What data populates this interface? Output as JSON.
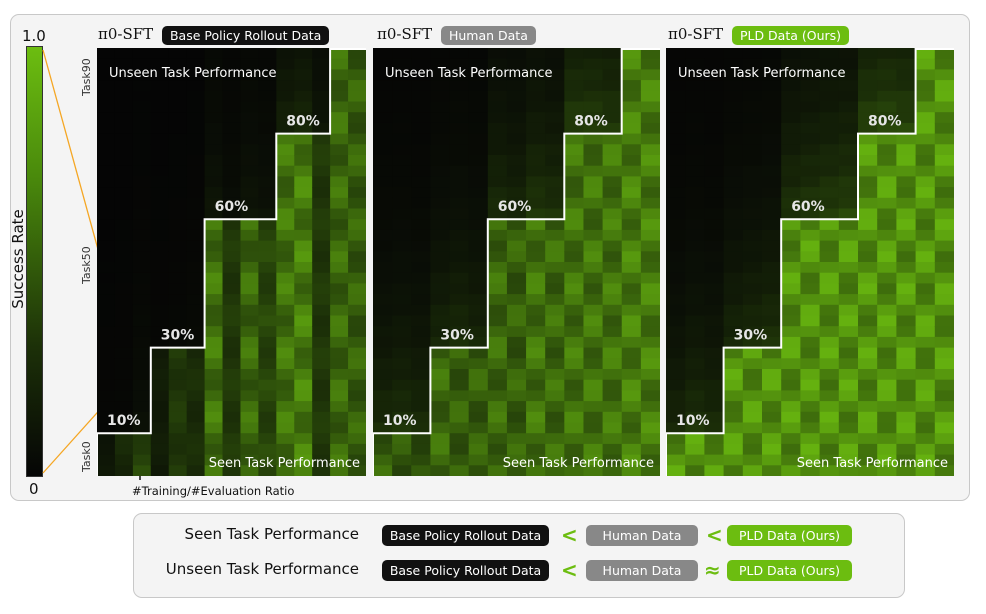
{
  "colorbar": {
    "top_label": "1.0",
    "bottom_label": "0",
    "title": "Success Rate"
  },
  "y_ticks": [
    "Task90",
    "Task50",
    "Task0"
  ],
  "x_annotation": "#Training/#Evaluation Ratio",
  "colors": {
    "low": "#050505",
    "high": "#6cbd10",
    "boundary": "#ffffff",
    "highlight": "#f5a623"
  },
  "chart_data": [
    {
      "type": "heatmap",
      "title_model": "π0-SFT",
      "title_tag": "Base Policy Rollout Data",
      "region_top_label": "Unseen Task Performance",
      "region_bottom_label": "Seen Task Performance",
      "stair_steps": [
        {
          "label": "10%",
          "col_start": 0,
          "col_end": 3,
          "seen_tasks": 10
        },
        {
          "label": "30%",
          "col_start": 3,
          "col_end": 6,
          "seen_tasks": 30
        },
        {
          "label": "60%",
          "col_start": 6,
          "col_end": 10,
          "seen_tasks": 60
        },
        {
          "label": "80%",
          "col_start": 10,
          "col_end": 13,
          "seen_tasks": 80
        },
        {
          "label": "",
          "col_start": 13,
          "col_end": 15,
          "seen_tasks": 100
        }
      ],
      "rows": 100,
      "cols": 15,
      "seen_success": [
        0.15,
        0.3,
        0.55,
        0.2,
        0.45,
        0.35,
        0.8,
        0.45,
        0.75,
        0.55,
        0.8,
        0.85,
        0.45,
        0.75,
        0.7
      ],
      "unseen_success": [
        0.02,
        0.03,
        0.1,
        0.02,
        0.03,
        0.05,
        0.15,
        0.08,
        0.15,
        0.12,
        0.25,
        0.3,
        0.15,
        0.45,
        0.55
      ]
    },
    {
      "type": "heatmap",
      "title_model": "π0-SFT",
      "title_tag": "Human Data",
      "region_top_label": "Unseen Task Performance",
      "region_bottom_label": "Seen Task Performance",
      "stair_steps": [
        {
          "label": "10%",
          "col_start": 0,
          "col_end": 3,
          "seen_tasks": 10
        },
        {
          "label": "30%",
          "col_start": 3,
          "col_end": 6,
          "seen_tasks": 30
        },
        {
          "label": "60%",
          "col_start": 6,
          "col_end": 10,
          "seen_tasks": 60
        },
        {
          "label": "80%",
          "col_start": 10,
          "col_end": 13,
          "seen_tasks": 80
        },
        {
          "label": "",
          "col_start": 13,
          "col_end": 15,
          "seen_tasks": 100
        }
      ],
      "rows": 100,
      "cols": 15,
      "seen_success": [
        0.7,
        0.65,
        0.6,
        0.75,
        0.7,
        0.7,
        0.75,
        0.7,
        0.8,
        0.75,
        0.8,
        0.8,
        0.8,
        0.85,
        0.85
      ],
      "unseen_success": [
        0.35,
        0.4,
        0.35,
        0.3,
        0.35,
        0.3,
        0.35,
        0.3,
        0.45,
        0.4,
        0.5,
        0.5,
        0.45,
        0.6,
        0.65
      ]
    },
    {
      "type": "heatmap",
      "title_model": "π0-SFT",
      "title_tag": "PLD Data (Ours)",
      "region_top_label": "Unseen Task Performance",
      "region_bottom_label": "Seen Task Performance",
      "stair_steps": [
        {
          "label": "10%",
          "col_start": 0,
          "col_end": 3,
          "seen_tasks": 10
        },
        {
          "label": "30%",
          "col_start": 3,
          "col_end": 6,
          "seen_tasks": 30
        },
        {
          "label": "60%",
          "col_start": 6,
          "col_end": 10,
          "seen_tasks": 60
        },
        {
          "label": "80%",
          "col_start": 10,
          "col_end": 13,
          "seen_tasks": 80
        },
        {
          "label": "",
          "col_start": 13,
          "col_end": 15,
          "seen_tasks": 100
        }
      ],
      "rows": 100,
      "cols": 15,
      "seen_success": [
        0.95,
        0.95,
        0.95,
        0.95,
        0.95,
        0.95,
        0.95,
        0.95,
        0.95,
        0.95,
        0.95,
        0.95,
        0.95,
        0.95,
        0.95
      ],
      "unseen_success": [
        0.3,
        0.4,
        0.35,
        0.3,
        0.35,
        0.4,
        0.4,
        0.45,
        0.5,
        0.55,
        0.55,
        0.6,
        0.55,
        0.65,
        0.7
      ]
    }
  ],
  "legend": {
    "rows": [
      {
        "label": "Seen Task Performance",
        "items": [
          "Base Policy Rollout Data",
          "<",
          "Human Data",
          "<",
          "PLD Data (Ours)"
        ]
      },
      {
        "label": "Unseen Task Performance",
        "items": [
          "Base Policy Rollout Data",
          "<",
          "Human Data",
          "≈",
          "PLD Data (Ours)"
        ]
      }
    ]
  }
}
